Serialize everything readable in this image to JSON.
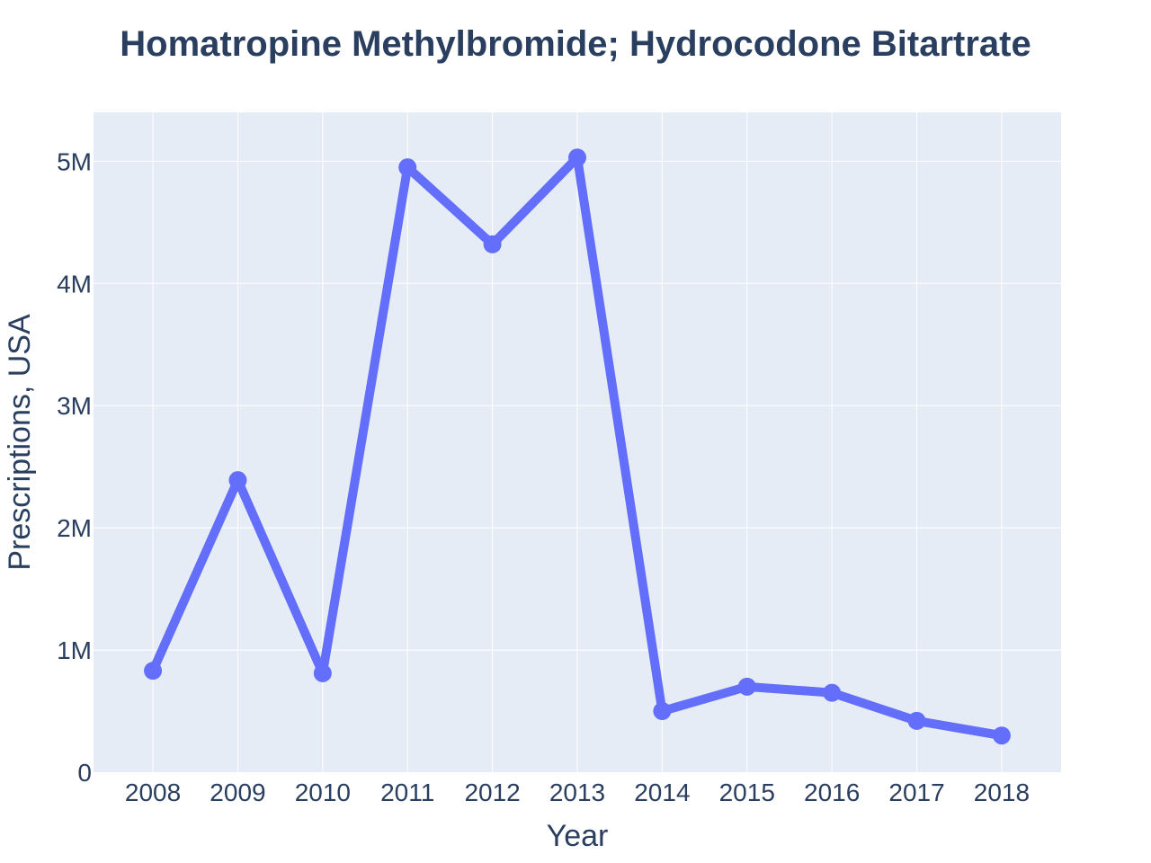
{
  "chart_data": {
    "type": "line",
    "title": "Homatropine Methylbromide; Hydrocodone Bitartrate",
    "xlabel": "Year",
    "ylabel": "Prescriptions, USA",
    "x": [
      2008,
      2009,
      2010,
      2011,
      2012,
      2013,
      2014,
      2015,
      2016,
      2017,
      2018
    ],
    "x_tick_labels": [
      "2008",
      "2009",
      "2010",
      "2011",
      "2012",
      "2013",
      "2014",
      "2015",
      "2016",
      "2017",
      "2018"
    ],
    "series": [
      {
        "values": [
          830000,
          2390000,
          810000,
          4950000,
          4320000,
          5030000,
          500000,
          700000,
          650000,
          420000,
          300000
        ]
      }
    ],
    "y_ticks": [
      0,
      1000000,
      2000000,
      3000000,
      4000000,
      5000000
    ],
    "y_tick_labels": [
      "0",
      "1M",
      "2M",
      "3M",
      "4M",
      "5M"
    ],
    "ylim": [
      0,
      5400000
    ],
    "xlim": [
      2007.3,
      2018.7
    ],
    "grid": true,
    "colors": {
      "line": "#636efa",
      "plot_background": "#e5ecf6",
      "grid": "#ffffff",
      "text": "#2a3f5f"
    }
  }
}
